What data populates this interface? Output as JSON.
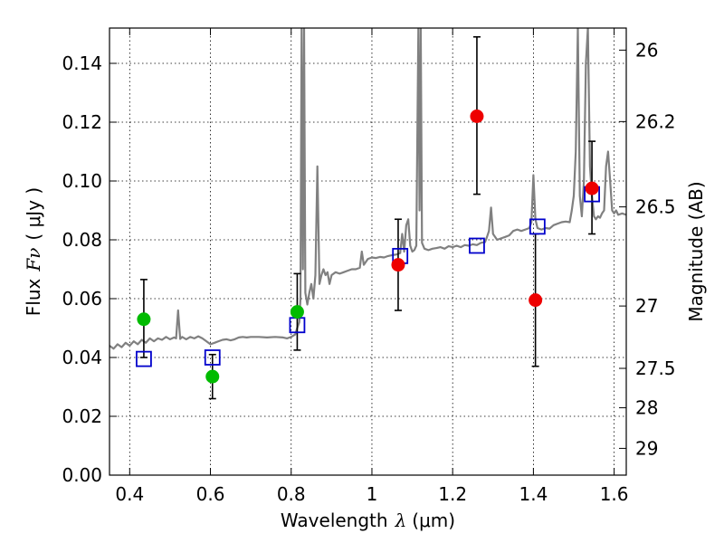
{
  "chart_data": {
    "type": "scatter",
    "title": "",
    "xlabel_text": "Wavelength",
    "xlabel_symbol": "λ",
    "xlabel_unit": "(μm)",
    "ylabel_text": "Flux",
    "ylabel_symbol": "Fν",
    "ylabel_unit": "( μJy )",
    "y2label": "Magnitude (AB)",
    "xlim": [
      0.35,
      1.63
    ],
    "ylim": [
      0.0,
      0.152
    ],
    "grid": true,
    "x_ticks": [
      {
        "value": 0.4,
        "label": "0.4"
      },
      {
        "value": 0.6,
        "label": "0.6"
      },
      {
        "value": 0.8,
        "label": "0.8"
      },
      {
        "value": 1.0,
        "label": "1"
      },
      {
        "value": 1.2,
        "label": "1.2"
      },
      {
        "value": 1.4,
        "label": "1.4"
      },
      {
        "value": 1.6,
        "label": "1.6"
      }
    ],
    "y_ticks": [
      {
        "value": 0.0,
        "label": "0.00"
      },
      {
        "value": 0.02,
        "label": "0.02"
      },
      {
        "value": 0.04,
        "label": "0.04"
      },
      {
        "value": 0.06,
        "label": "0.06"
      },
      {
        "value": 0.08,
        "label": "0.08"
      },
      {
        "value": 0.1,
        "label": "0.10"
      },
      {
        "value": 0.12,
        "label": "0.12"
      },
      {
        "value": 0.14,
        "label": "0.14"
      }
    ],
    "y2_ticks": [
      {
        "flux": 0.1445,
        "label": "26"
      },
      {
        "flux": 0.1202,
        "label": "26.2"
      },
      {
        "flux": 0.0912,
        "label": "26.5"
      },
      {
        "flux": 0.0575,
        "label": "27"
      },
      {
        "flux": 0.0363,
        "label": "27.5"
      },
      {
        "flux": 0.0229,
        "label": "28"
      },
      {
        "flux": 0.0091,
        "label": "29"
      }
    ],
    "colors": {
      "spectrum": "#808080",
      "model": "#0000cc",
      "green": "#00bb00",
      "red": "#ee0000",
      "error": "#000000"
    },
    "spectrum": [
      [
        0.35,
        0.044
      ],
      [
        0.36,
        0.043
      ],
      [
        0.37,
        0.0445
      ],
      [
        0.38,
        0.0435
      ],
      [
        0.39,
        0.045
      ],
      [
        0.4,
        0.044
      ],
      [
        0.41,
        0.0455
      ],
      [
        0.42,
        0.0445
      ],
      [
        0.43,
        0.046
      ],
      [
        0.44,
        0.045
      ],
      [
        0.45,
        0.0465
      ],
      [
        0.46,
        0.0455
      ],
      [
        0.47,
        0.0465
      ],
      [
        0.48,
        0.046
      ],
      [
        0.49,
        0.047
      ],
      [
        0.5,
        0.0462
      ],
      [
        0.51,
        0.0468
      ],
      [
        0.515,
        0.0465
      ],
      [
        0.52,
        0.056
      ],
      [
        0.525,
        0.0463
      ],
      [
        0.53,
        0.047
      ],
      [
        0.54,
        0.0462
      ],
      [
        0.55,
        0.047
      ],
      [
        0.56,
        0.0465
      ],
      [
        0.57,
        0.0472
      ],
      [
        0.58,
        0.0465
      ],
      [
        0.59,
        0.0455
      ],
      [
        0.6,
        0.0445
      ],
      [
        0.61,
        0.045
      ],
      [
        0.62,
        0.0455
      ],
      [
        0.63,
        0.046
      ],
      [
        0.64,
        0.0462
      ],
      [
        0.65,
        0.0458
      ],
      [
        0.66,
        0.0462
      ],
      [
        0.67,
        0.0468
      ],
      [
        0.68,
        0.047
      ],
      [
        0.69,
        0.0468
      ],
      [
        0.7,
        0.047
      ],
      [
        0.72,
        0.047
      ],
      [
        0.74,
        0.0468
      ],
      [
        0.76,
        0.047
      ],
      [
        0.78,
        0.0468
      ],
      [
        0.79,
        0.0465
      ],
      [
        0.8,
        0.047
      ],
      [
        0.81,
        0.0478
      ],
      [
        0.815,
        0.05
      ],
      [
        0.82,
        0.052
      ],
      [
        0.823,
        0.06
      ],
      [
        0.826,
        0.152
      ],
      [
        0.829,
        0.07
      ],
      [
        0.832,
        0.152
      ],
      [
        0.835,
        0.062
      ],
      [
        0.84,
        0.058
      ],
      [
        0.845,
        0.062
      ],
      [
        0.85,
        0.065
      ],
      [
        0.855,
        0.06
      ],
      [
        0.86,
        0.068
      ],
      [
        0.865,
        0.105
      ],
      [
        0.87,
        0.065
      ],
      [
        0.875,
        0.068
      ],
      [
        0.88,
        0.07
      ],
      [
        0.885,
        0.068
      ],
      [
        0.89,
        0.069
      ],
      [
        0.895,
        0.065
      ],
      [
        0.9,
        0.068
      ],
      [
        0.91,
        0.069
      ],
      [
        0.92,
        0.0685
      ],
      [
        0.93,
        0.069
      ],
      [
        0.94,
        0.0695
      ],
      [
        0.95,
        0.07
      ],
      [
        0.96,
        0.07
      ],
      [
        0.97,
        0.0705
      ],
      [
        0.975,
        0.076
      ],
      [
        0.98,
        0.0715
      ],
      [
        0.99,
        0.0735
      ],
      [
        1.0,
        0.074
      ],
      [
        1.01,
        0.0738
      ],
      [
        1.02,
        0.0742
      ],
      [
        1.03,
        0.074
      ],
      [
        1.04,
        0.0745
      ],
      [
        1.05,
        0.0748
      ],
      [
        1.06,
        0.075
      ],
      [
        1.07,
        0.0755
      ],
      [
        1.075,
        0.082
      ],
      [
        1.08,
        0.076
      ],
      [
        1.085,
        0.085
      ],
      [
        1.09,
        0.087
      ],
      [
        1.095,
        0.078
      ],
      [
        1.1,
        0.076
      ],
      [
        1.105,
        0.0765
      ],
      [
        1.11,
        0.078
      ],
      [
        1.115,
        0.152
      ],
      [
        1.118,
        0.09
      ],
      [
        1.121,
        0.152
      ],
      [
        1.124,
        0.079
      ],
      [
        1.13,
        0.077
      ],
      [
        1.14,
        0.0765
      ],
      [
        1.15,
        0.077
      ],
      [
        1.16,
        0.0772
      ],
      [
        1.17,
        0.0775
      ],
      [
        1.18,
        0.077
      ],
      [
        1.19,
        0.0778
      ],
      [
        1.2,
        0.0775
      ],
      [
        1.21,
        0.078
      ],
      [
        1.22,
        0.0775
      ],
      [
        1.23,
        0.0782
      ],
      [
        1.24,
        0.078
      ],
      [
        1.25,
        0.0785
      ],
      [
        1.26,
        0.0782
      ],
      [
        1.27,
        0.079
      ],
      [
        1.28,
        0.0792
      ],
      [
        1.285,
        0.081
      ],
      [
        1.29,
        0.083
      ],
      [
        1.295,
        0.091
      ],
      [
        1.3,
        0.082
      ],
      [
        1.31,
        0.08
      ],
      [
        1.32,
        0.0805
      ],
      [
        1.33,
        0.081
      ],
      [
        1.34,
        0.0815
      ],
      [
        1.35,
        0.083
      ],
      [
        1.36,
        0.0835
      ],
      [
        1.37,
        0.083
      ],
      [
        1.38,
        0.0835
      ],
      [
        1.39,
        0.084
      ],
      [
        1.395,
        0.086
      ],
      [
        1.4,
        0.102
      ],
      [
        1.405,
        0.087
      ],
      [
        1.41,
        0.084
      ],
      [
        1.42,
        0.0835
      ],
      [
        1.43,
        0.084
      ],
      [
        1.44,
        0.0838
      ],
      [
        1.45,
        0.085
      ],
      [
        1.46,
        0.0855
      ],
      [
        1.47,
        0.086
      ],
      [
        1.48,
        0.0862
      ],
      [
        1.49,
        0.086
      ],
      [
        1.495,
        0.09
      ],
      [
        1.5,
        0.095
      ],
      [
        1.505,
        0.11
      ],
      [
        1.51,
        0.152
      ],
      [
        1.515,
        0.095
      ],
      [
        1.52,
        0.088
      ],
      [
        1.525,
        0.1
      ],
      [
        1.53,
        0.14
      ],
      [
        1.535,
        0.152
      ],
      [
        1.54,
        0.105
      ],
      [
        1.545,
        0.095
      ],
      [
        1.55,
        0.088
      ],
      [
        1.555,
        0.087
      ],
      [
        1.56,
        0.088
      ],
      [
        1.565,
        0.0875
      ],
      [
        1.57,
        0.089
      ],
      [
        1.575,
        0.09
      ],
      [
        1.58,
        0.105
      ],
      [
        1.585,
        0.11
      ],
      [
        1.59,
        0.1
      ],
      [
        1.595,
        0.09
      ],
      [
        1.6,
        0.089
      ],
      [
        1.605,
        0.09
      ],
      [
        1.61,
        0.0885
      ],
      [
        1.62,
        0.089
      ],
      [
        1.63,
        0.0885
      ]
    ],
    "model_points": [
      {
        "x": 0.435,
        "y": 0.0395
      },
      {
        "x": 0.605,
        "y": 0.04
      },
      {
        "x": 0.815,
        "y": 0.051
      },
      {
        "x": 1.07,
        "y": 0.0745
      },
      {
        "x": 1.26,
        "y": 0.078
      },
      {
        "x": 1.41,
        "y": 0.0845
      },
      {
        "x": 1.545,
        "y": 0.0955
      }
    ],
    "observed_green": [
      {
        "x": 0.435,
        "y": 0.053,
        "yerr_low": 0.04,
        "yerr_high": 0.0665
      },
      {
        "x": 0.605,
        "y": 0.0335,
        "yerr_low": 0.026,
        "yerr_high": 0.041
      },
      {
        "x": 0.815,
        "y": 0.0555,
        "yerr_low": 0.0425,
        "yerr_high": 0.0685
      }
    ],
    "observed_red": [
      {
        "x": 1.065,
        "y": 0.0715,
        "yerr_low": 0.056,
        "yerr_high": 0.087
      },
      {
        "x": 1.26,
        "y": 0.122,
        "yerr_low": 0.0955,
        "yerr_high": 0.149
      },
      {
        "x": 1.405,
        "y": 0.0595,
        "yerr_low": 0.037,
        "yerr_high": 0.082
      },
      {
        "x": 1.545,
        "y": 0.0975,
        "yerr_low": 0.082,
        "yerr_high": 0.1135
      }
    ]
  }
}
